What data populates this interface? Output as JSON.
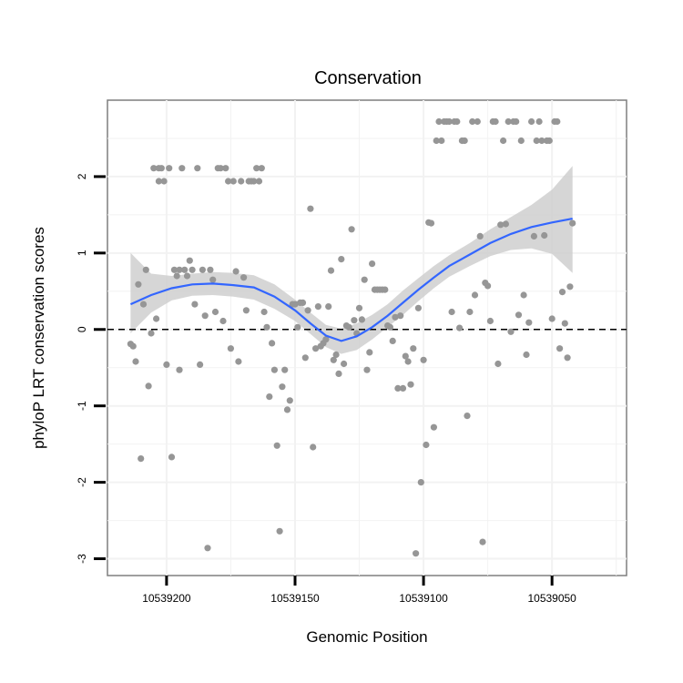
{
  "chart_data": {
    "type": "scatter",
    "title": "Conservation",
    "xlabel": "Genomic Position",
    "ylabel": "phyloP LRT conservation scores",
    "xlim": [
      10539021,
      10539223
    ],
    "ylim": [
      -3.22,
      3.0
    ],
    "x_axis_reversed": true,
    "xticks": [
      10539200,
      10539150,
      10539100,
      10539050
    ],
    "yticks": [
      -3,
      -2,
      -1,
      0,
      1,
      2
    ],
    "reference_line": {
      "y": 0,
      "style": "dashed"
    },
    "grid": true,
    "colors": {
      "points": "#969696",
      "smooth_line": "#3366ff",
      "ribbon": "#cccccc",
      "panel_border": "#7f7f7f"
    },
    "points": [
      [
        10539214,
        -0.19
      ],
      [
        10539213,
        -0.22
      ],
      [
        10539212,
        -0.42
      ],
      [
        10539211,
        0.59
      ],
      [
        10539210,
        -1.69
      ],
      [
        10539209,
        0.33
      ],
      [
        10539208,
        0.78
      ],
      [
        10539207,
        -0.74
      ],
      [
        10539206,
        -0.05
      ],
      [
        10539205,
        2.11
      ],
      [
        10539204,
        0.14
      ],
      [
        10539203,
        2.11
      ],
      [
        10539203,
        1.94
      ],
      [
        10539202,
        2.11
      ],
      [
        10539201,
        1.94
      ],
      [
        10539200,
        -0.46
      ],
      [
        10539199,
        2.11
      ],
      [
        10539198,
        -1.67
      ],
      [
        10539197,
        0.78
      ],
      [
        10539196,
        0.7
      ],
      [
        10539195,
        -0.53
      ],
      [
        10539195,
        0.78
      ],
      [
        10539194,
        2.11
      ],
      [
        10539193,
        0.78
      ],
      [
        10539192,
        0.7
      ],
      [
        10539191,
        0.9
      ],
      [
        10539190,
        0.78
      ],
      [
        10539189,
        0.33
      ],
      [
        10539188,
        2.11
      ],
      [
        10539187,
        -0.46
      ],
      [
        10539186,
        0.78
      ],
      [
        10539185,
        0.18
      ],
      [
        10539184,
        -2.86
      ],
      [
        10539183,
        0.78
      ],
      [
        10539182,
        0.65
      ],
      [
        10539181,
        0.23
      ],
      [
        10539180,
        2.11
      ],
      [
        10539179,
        2.11
      ],
      [
        10539178,
        0.11
      ],
      [
        10539177,
        2.11
      ],
      [
        10539176,
        1.94
      ],
      [
        10539175,
        -0.25
      ],
      [
        10539174,
        1.94
      ],
      [
        10539173,
        0.76
      ],
      [
        10539172,
        -0.42
      ],
      [
        10539171,
        1.94
      ],
      [
        10539170,
        0.68
      ],
      [
        10539169,
        0.25
      ],
      [
        10539168,
        1.94
      ],
      [
        10539167,
        1.94
      ],
      [
        10539166,
        1.94
      ],
      [
        10539165,
        2.11
      ],
      [
        10539164,
        1.94
      ],
      [
        10539163,
        2.11
      ],
      [
        10539162,
        0.23
      ],
      [
        10539161,
        0.03
      ],
      [
        10539160,
        -0.88
      ],
      [
        10539159,
        -0.18
      ],
      [
        10539158,
        -0.53
      ],
      [
        10539157,
        -1.52
      ],
      [
        10539156,
        -2.64
      ],
      [
        10539155,
        -0.75
      ],
      [
        10539154,
        -0.53
      ],
      [
        10539153,
        -1.05
      ],
      [
        10539152,
        -0.93
      ],
      [
        10539151,
        0.33
      ],
      [
        10539150,
        0.33
      ],
      [
        10539149,
        0.03
      ],
      [
        10539148,
        0.35
      ],
      [
        10539147,
        0.35
      ],
      [
        10539146,
        -0.37
      ],
      [
        10539145,
        0.25
      ],
      [
        10539144,
        1.58
      ],
      [
        10539143,
        -1.54
      ],
      [
        10539142,
        -0.25
      ],
      [
        10539141,
        0.3
      ],
      [
        10539140,
        -0.22
      ],
      [
        10539139,
        -0.18
      ],
      [
        10539138,
        -0.13
      ],
      [
        10539137,
        0.3
      ],
      [
        10539136,
        0.77
      ],
      [
        10539135,
        -0.4
      ],
      [
        10539134,
        -0.33
      ],
      [
        10539133,
        -0.58
      ],
      [
        10539132,
        0.92
      ],
      [
        10539131,
        -0.45
      ],
      [
        10539130,
        0.05
      ],
      [
        10539129,
        0.03
      ],
      [
        10539128,
        1.31
      ],
      [
        10539127,
        0.12
      ],
      [
        10539126,
        -0.05
      ],
      [
        10539125,
        0.28
      ],
      [
        10539124,
        0.13
      ],
      [
        10539123,
        0.65
      ],
      [
        10539122,
        -0.53
      ],
      [
        10539121,
        -0.3
      ],
      [
        10539120,
        0.86
      ],
      [
        10539119,
        0.52
      ],
      [
        10539118,
        0.52
      ],
      [
        10539117,
        0.52
      ],
      [
        10539116,
        0.52
      ],
      [
        10539115,
        0.52
      ],
      [
        10539114,
        0.05
      ],
      [
        10539113,
        0.03
      ],
      [
        10539112,
        -0.15
      ],
      [
        10539111,
        0.16
      ],
      [
        10539110,
        -0.77
      ],
      [
        10539109,
        0.18
      ],
      [
        10539108,
        -0.77
      ],
      [
        10539107,
        -0.35
      ],
      [
        10539106,
        -0.42
      ],
      [
        10539105,
        -0.72
      ],
      [
        10539104,
        -0.25
      ],
      [
        10539103,
        -2.93
      ],
      [
        10539102,
        0.28
      ],
      [
        10539101,
        -2.0
      ],
      [
        10539100,
        -0.4
      ],
      [
        10539099,
        -1.51
      ],
      [
        10539098,
        1.4
      ],
      [
        10539097,
        1.39
      ],
      [
        10539096,
        -1.28
      ],
      [
        10539095,
        2.47
      ],
      [
        10539094,
        2.72
      ],
      [
        10539093,
        2.47
      ],
      [
        10539092,
        2.72
      ],
      [
        10539091,
        2.72
      ],
      [
        10539090,
        2.72
      ],
      [
        10539089,
        0.23
      ],
      [
        10539088,
        2.72
      ],
      [
        10539087,
        2.72
      ],
      [
        10539086,
        0.02
      ],
      [
        10539085,
        2.47
      ],
      [
        10539084,
        2.47
      ],
      [
        10539083,
        -1.13
      ],
      [
        10539082,
        0.23
      ],
      [
        10539081,
        2.72
      ],
      [
        10539080,
        0.45
      ],
      [
        10539079,
        2.72
      ],
      [
        10539078,
        1.22
      ],
      [
        10539077,
        -2.78
      ],
      [
        10539076,
        0.61
      ],
      [
        10539075,
        0.57
      ],
      [
        10539074,
        0.11
      ],
      [
        10539073,
        2.72
      ],
      [
        10539072,
        2.72
      ],
      [
        10539071,
        -0.45
      ],
      [
        10539070,
        1.37
      ],
      [
        10539069,
        2.47
      ],
      [
        10539068,
        1.38
      ],
      [
        10539067,
        2.72
      ],
      [
        10539066,
        -0.03
      ],
      [
        10539065,
        2.72
      ],
      [
        10539064,
        2.72
      ],
      [
        10539063,
        0.19
      ],
      [
        10539062,
        2.47
      ],
      [
        10539061,
        0.45
      ],
      [
        10539060,
        -0.33
      ],
      [
        10539059,
        0.09
      ],
      [
        10539058,
        2.72
      ],
      [
        10539057,
        1.22
      ],
      [
        10539056,
        2.47
      ],
      [
        10539055,
        2.72
      ],
      [
        10539054,
        2.47
      ],
      [
        10539053,
        1.23
      ],
      [
        10539052,
        2.47
      ],
      [
        10539051,
        2.47
      ],
      [
        10539050,
        0.14
      ],
      [
        10539049,
        2.72
      ],
      [
        10539048,
        2.72
      ],
      [
        10539047,
        -0.25
      ],
      [
        10539046,
        0.49
      ],
      [
        10539045,
        0.08
      ],
      [
        10539044,
        -0.37
      ],
      [
        10539043,
        0.56
      ],
      [
        10539042,
        1.39
      ]
    ],
    "smooth_line": {
      "x": [
        10539214,
        10539206,
        10539198,
        10539190,
        10539182,
        10539174,
        10539166,
        10539158,
        10539150,
        10539144,
        10539138,
        10539132,
        10539126,
        10539120,
        10539114,
        10539108,
        10539102,
        10539096,
        10539090,
        10539082,
        10539074,
        10539066,
        10539058,
        10539050,
        10539042
      ],
      "y": [
        0.33,
        0.45,
        0.54,
        0.59,
        0.6,
        0.58,
        0.55,
        0.43,
        0.25,
        0.08,
        -0.08,
        -0.15,
        -0.09,
        0.03,
        0.18,
        0.35,
        0.52,
        0.68,
        0.83,
        0.98,
        1.13,
        1.25,
        1.34,
        1.4,
        1.45
      ],
      "ci_low": [
        -0.05,
        0.22,
        0.38,
        0.44,
        0.45,
        0.43,
        0.39,
        0.27,
        0.11,
        -0.06,
        -0.23,
        -0.32,
        -0.27,
        -0.13,
        0.03,
        0.19,
        0.37,
        0.54,
        0.69,
        0.83,
        0.96,
        1.04,
        1.06,
        0.99,
        0.74
      ],
      "ci_high": [
        1.0,
        0.73,
        0.7,
        0.73,
        0.75,
        0.74,
        0.71,
        0.59,
        0.39,
        0.22,
        0.06,
        0.01,
        0.08,
        0.19,
        0.33,
        0.51,
        0.67,
        0.83,
        0.97,
        1.13,
        1.31,
        1.47,
        1.63,
        1.83,
        2.14
      ]
    }
  }
}
